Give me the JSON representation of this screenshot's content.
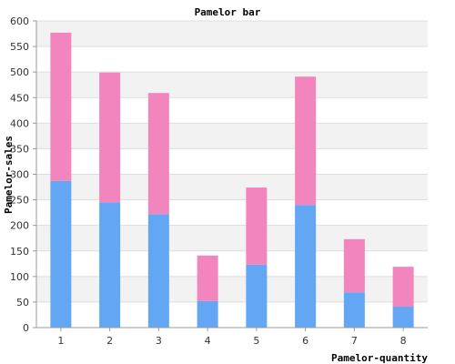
{
  "chart_data": {
    "type": "bar",
    "stacked": true,
    "title": "Pamelor bar",
    "xlabel": "Pamelor-quantity",
    "ylabel": "Pamelor-sales",
    "categories": [
      "1",
      "2",
      "3",
      "4",
      "5",
      "6",
      "7",
      "8"
    ],
    "ylim": [
      0,
      600
    ],
    "yticks": [
      0,
      50,
      100,
      150,
      200,
      250,
      300,
      350,
      400,
      450,
      500,
      550,
      600
    ],
    "grid": true,
    "legend": "none",
    "series": [
      {
        "values": [
          287,
          245,
          222,
          52,
          123,
          240,
          69,
          41
        ],
        "color": "#63a7f4"
      },
      {
        "values": [
          290,
          254,
          237,
          89,
          151,
          251,
          104,
          78
        ],
        "color": "#f285bd"
      }
    ],
    "band_colors": [
      "#f2f2f2",
      "#ffffff"
    ],
    "grid_color": "#dddddd"
  }
}
